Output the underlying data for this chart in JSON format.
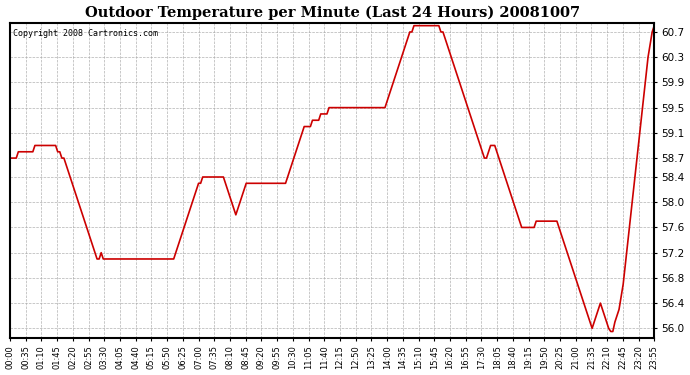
{
  "title": "Outdoor Temperature per Minute (Last 24 Hours) 20081007",
  "copyright_text": "Copyright 2008 Cartronics.com",
  "line_color": "#cc0000",
  "background_color": "#ffffff",
  "grid_color": "#aaaaaa",
  "ylim": [
    55.85,
    60.85
  ],
  "yticks": [
    56.0,
    56.4,
    56.8,
    57.2,
    57.6,
    58.0,
    58.4,
    58.7,
    59.1,
    59.5,
    59.9,
    60.3,
    60.7
  ],
  "xtick_labels": [
    "00:00",
    "00:35",
    "01:10",
    "01:45",
    "02:20",
    "02:55",
    "03:30",
    "04:05",
    "04:40",
    "05:15",
    "05:50",
    "06:25",
    "07:00",
    "07:35",
    "08:10",
    "08:45",
    "09:20",
    "09:55",
    "10:30",
    "11:05",
    "11:40",
    "12:15",
    "12:50",
    "13:25",
    "14:00",
    "14:35",
    "15:10",
    "15:45",
    "16:20",
    "16:55",
    "17:30",
    "18:05",
    "18:40",
    "19:15",
    "19:50",
    "20:25",
    "21:00",
    "21:35",
    "22:10",
    "22:45",
    "23:20",
    "23:55"
  ],
  "data_y": [
    58.7,
    58.7,
    58.7,
    58.7,
    58.8,
    58.8,
    58.8,
    58.8,
    58.8,
    58.8,
    58.8,
    58.8,
    58.9,
    58.9,
    58.9,
    58.9,
    58.9,
    58.9,
    58.9,
    58.9,
    58.9,
    58.9,
    58.9,
    58.8,
    58.8,
    58.7,
    58.7,
    58.6,
    58.5,
    58.4,
    58.3,
    58.2,
    58.1,
    58.0,
    57.9,
    57.8,
    57.7,
    57.6,
    57.5,
    57.4,
    57.3,
    57.2,
    57.1,
    57.1,
    57.2,
    57.1,
    57.1,
    57.1,
    57.1,
    57.1,
    57.1,
    57.1,
    57.1,
    57.1,
    57.1,
    57.1,
    57.1,
    57.1,
    57.1,
    57.1,
    57.1,
    57.1,
    57.1,
    57.1,
    57.1,
    57.1,
    57.1,
    57.1,
    57.1,
    57.1,
    57.1,
    57.1,
    57.1,
    57.1,
    57.1,
    57.1,
    57.1,
    57.1,
    57.1,
    57.1,
    57.2,
    57.3,
    57.4,
    57.5,
    57.6,
    57.7,
    57.8,
    57.9,
    58.0,
    58.1,
    58.2,
    58.3,
    58.3,
    58.4,
    58.4,
    58.4,
    58.4,
    58.4,
    58.4,
    58.4,
    58.4,
    58.4,
    58.4,
    58.4,
    58.3,
    58.2,
    58.1,
    58.0,
    57.9,
    57.8,
    57.9,
    58.0,
    58.1,
    58.2,
    58.3,
    58.3,
    58.3,
    58.3,
    58.3,
    58.3,
    58.3,
    58.3,
    58.3,
    58.3,
    58.3,
    58.3,
    58.3,
    58.3,
    58.3,
    58.3,
    58.3,
    58.3,
    58.3,
    58.3,
    58.4,
    58.5,
    58.6,
    58.7,
    58.8,
    58.9,
    59.0,
    59.1,
    59.2,
    59.2,
    59.2,
    59.2,
    59.3,
    59.3,
    59.3,
    59.3,
    59.4,
    59.4,
    59.4,
    59.4,
    59.5,
    59.5,
    59.5,
    59.5,
    59.5,
    59.5,
    59.5,
    59.5,
    59.5,
    59.5,
    59.5,
    59.5,
    59.5,
    59.5,
    59.5,
    59.5,
    59.5,
    59.5,
    59.5,
    59.5,
    59.5,
    59.5,
    59.5,
    59.5,
    59.5,
    59.5,
    59.5,
    59.5,
    59.6,
    59.7,
    59.8,
    59.9,
    60.0,
    60.1,
    60.2,
    60.3,
    60.4,
    60.5,
    60.6,
    60.7,
    60.7,
    60.8,
    60.8,
    60.8,
    60.8,
    60.8,
    60.8,
    60.8,
    60.8,
    60.8,
    60.8,
    60.8,
    60.8,
    60.8,
    60.7,
    60.7,
    60.6,
    60.5,
    60.4,
    60.3,
    60.2,
    60.1,
    60.0,
    59.9,
    59.8,
    59.7,
    59.6,
    59.5,
    59.4,
    59.3,
    59.2,
    59.1,
    59.0,
    58.9,
    58.8,
    58.7,
    58.7,
    58.8,
    58.9,
    58.9,
    58.9,
    58.8,
    58.7,
    58.6,
    58.5,
    58.4,
    58.3,
    58.2,
    58.1,
    58.0,
    57.9,
    57.8,
    57.7,
    57.6,
    57.6,
    57.6,
    57.6,
    57.6,
    57.6,
    57.6,
    57.7,
    57.7,
    57.7,
    57.7,
    57.7,
    57.7,
    57.7,
    57.7,
    57.7,
    57.7,
    57.7,
    57.6,
    57.5,
    57.4,
    57.3,
    57.2,
    57.1,
    57.0,
    56.9,
    56.8,
    56.7,
    56.6,
    56.5,
    56.4,
    56.3,
    56.2,
    56.1,
    56.0,
    56.1,
    56.2,
    56.3,
    56.4,
    56.3,
    56.2,
    56.1,
    56.0,
    55.95,
    55.95,
    56.1,
    56.2,
    56.3,
    56.5,
    56.7,
    57.0,
    57.3,
    57.6,
    57.9,
    58.2,
    58.5,
    58.8,
    59.1,
    59.4,
    59.7,
    60.0,
    60.3,
    60.5,
    60.7,
    60.8
  ]
}
